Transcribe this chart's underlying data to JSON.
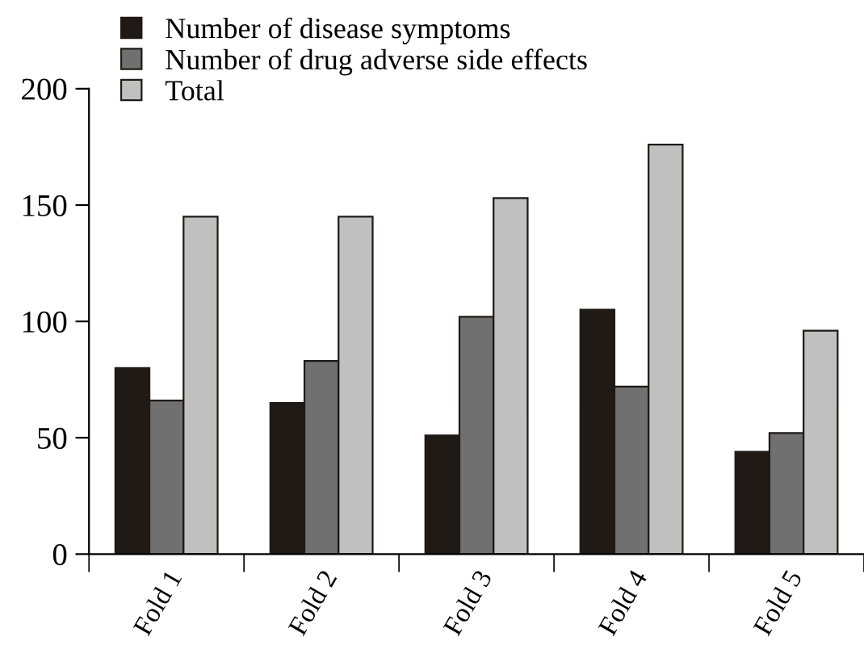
{
  "chart_data": {
    "type": "bar",
    "categories": [
      "Fold 1",
      "Fold 2",
      "Fold 3",
      "Fold 4",
      "Fold 5"
    ],
    "series": [
      {
        "name": "Number of disease symptoms",
        "color": "#201a17",
        "values": [
          80,
          65,
          51,
          105,
          44
        ]
      },
      {
        "name": "Number of drug adverse side effects",
        "color": "#707070",
        "values": [
          66,
          83,
          102,
          72,
          52
        ]
      },
      {
        "name": "Total",
        "color": "#c0c0c0",
        "values": [
          145,
          145,
          153,
          176,
          96
        ]
      }
    ],
    "ylim": [
      0,
      200
    ],
    "yticks": [
      0,
      50,
      100,
      150,
      200
    ],
    "grid": false,
    "legend": "top left"
  }
}
